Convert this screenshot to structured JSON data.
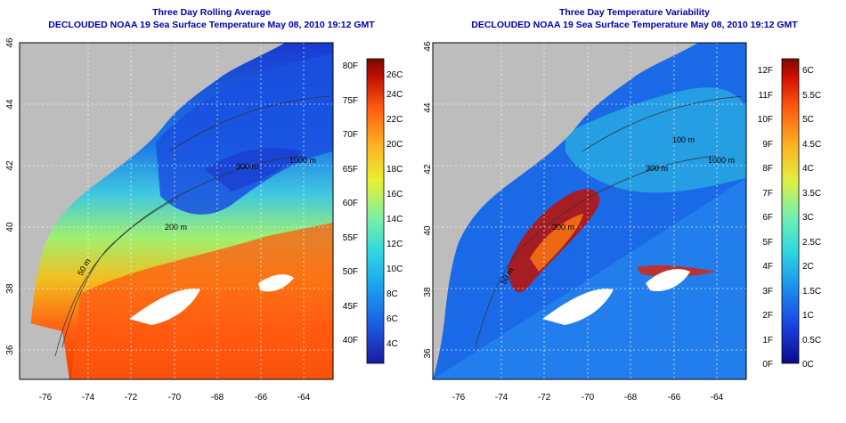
{
  "colors": {
    "title_blue": "#0000a8",
    "land": "#bdbdbd",
    "cloud_mask": "#ffffff"
  },
  "maps": [
    {
      "title": "Three Day Rolling Average",
      "subtitle": "DECLOUDED NOAA 19 Sea Surface Temperature May 08, 2010 19:12 GMT",
      "lat_ticks": [
        "36",
        "38",
        "40",
        "42",
        "44",
        "46"
      ],
      "lon_ticks": [
        "-76",
        "-74",
        "-72",
        "-70",
        "-68",
        "-66",
        "-64"
      ],
      "isobath_labels": [
        "50 m",
        "200 m",
        "300 m",
        "1000 m",
        "200 m"
      ],
      "colorbar": {
        "f_labels": [
          "40F",
          "45F",
          "50F",
          "55F",
          "60F",
          "65F",
          "70F",
          "75F",
          "80F"
        ],
        "c_labels": [
          "4C",
          "6C",
          "8C",
          "10C",
          "12C",
          "14C",
          "16C",
          "18C",
          "20C",
          "22C",
          "24C",
          "26C"
        ],
        "stops": [
          "#1a1aa0",
          "#1c5ae0",
          "#1aa0f0",
          "#30d8e0",
          "#7ff0a0",
          "#e8f030",
          "#ffb020",
          "#ff5a10",
          "#c01000",
          "#7a0a00"
        ]
      }
    },
    {
      "title": "Three Day Temperature Variability",
      "subtitle": "DECLOUDED NOAA 19 Sea Surface Temperature May 08, 2010 19:12 GMT",
      "lat_ticks": [
        "36",
        "38",
        "40",
        "42",
        "44",
        "46"
      ],
      "lon_ticks": [
        "-76",
        "-74",
        "-72",
        "-70",
        "-68",
        "-66",
        "-64"
      ],
      "isobath_labels": [
        "50 m",
        "100 m",
        "200 m",
        "300 m",
        "1000 m"
      ],
      "colorbar": {
        "f_labels": [
          "0F",
          "1F",
          "2F",
          "3F",
          "4F",
          "5F",
          "6F",
          "7F",
          "8F",
          "9F",
          "10F",
          "11F",
          "12F"
        ],
        "c_labels": [
          "0C",
          "0.5C",
          "1C",
          "1.5C",
          "2C",
          "2.5C",
          "3C",
          "3.5C",
          "4C",
          "4.5C",
          "5C",
          "5.5C",
          "6C"
        ],
        "stops": [
          "#0a0a8a",
          "#1a40e0",
          "#1a90f0",
          "#30d8e0",
          "#70f0b0",
          "#e0f040",
          "#ffb020",
          "#ff5a10",
          "#d01000",
          "#7a0a00"
        ]
      }
    }
  ]
}
